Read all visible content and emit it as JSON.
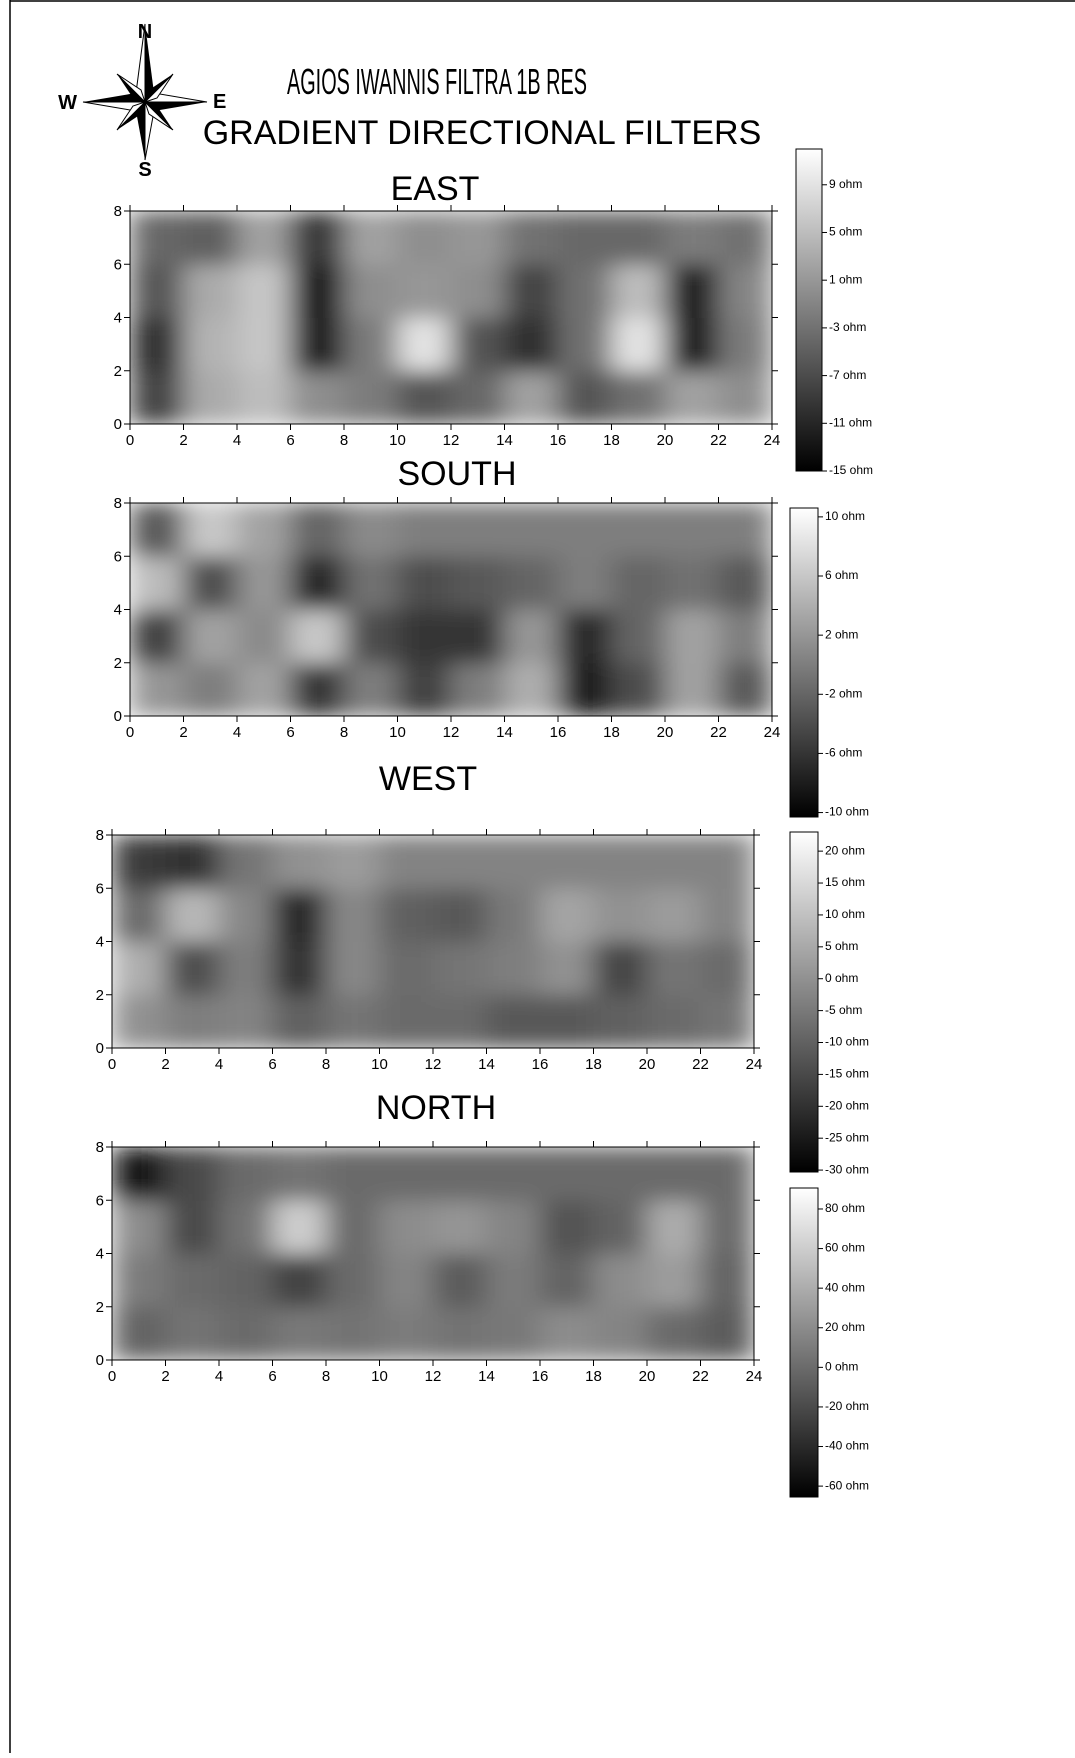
{
  "header": {
    "title": "AGIOS IWANNIS FILTRA 1B RES",
    "subtitle": "GRADIENT DIRECTIONAL FILTERS"
  },
  "compass": {
    "n": "N",
    "e": "E",
    "s": "S",
    "w": "W"
  },
  "chart_data": [
    {
      "type": "heatmap",
      "title": "EAST",
      "xlim": [
        0,
        24
      ],
      "ylim": [
        0,
        8
      ],
      "xticks": [
        0,
        2,
        4,
        6,
        8,
        10,
        12,
        14,
        16,
        18,
        20,
        22,
        24
      ],
      "yticks": [
        0,
        2,
        4,
        6,
        8
      ],
      "colors": [
        "#000000",
        "#ffffff"
      ],
      "zlim": [
        -15,
        12
      ],
      "zticks": [
        {
          "value": 9,
          "label": "9 ohm"
        },
        {
          "value": 5,
          "label": "5 ohm"
        },
        {
          "value": 1,
          "label": "1 ohm"
        },
        {
          "value": -3,
          "label": "-3 ohm"
        },
        {
          "value": -7,
          "label": "-7 ohm"
        },
        {
          "value": -11,
          "label": "-11 ohm"
        },
        {
          "value": -15,
          "label": "-15 ohm"
        }
      ],
      "z": [
        [
          -8,
          3,
          5,
          0,
          -2,
          -6,
          -4,
          2,
          -6,
          -3,
          2,
          0
        ],
        [
          -10,
          4,
          6,
          -12,
          -2,
          9,
          -6,
          -10,
          -3,
          9,
          -12,
          -2
        ],
        [
          -6,
          3,
          6,
          -13,
          0,
          1,
          0,
          -8,
          -3,
          5,
          -12,
          -1
        ],
        [
          -4,
          -5,
          2,
          -9,
          2,
          0,
          1,
          -3,
          -4,
          -4,
          -2,
          -3
        ]
      ]
    },
    {
      "type": "heatmap",
      "title": "SOUTH",
      "xlim": [
        0,
        24
      ],
      "ylim": [
        0,
        8
      ],
      "xticks": [
        0,
        2,
        4,
        6,
        8,
        10,
        12,
        14,
        16,
        18,
        20,
        22,
        24
      ],
      "yticks": [
        0,
        2,
        4,
        6,
        8
      ],
      "colors": [
        "#000000",
        "#ffffff"
      ],
      "zlim": [
        -10.3,
        10.6
      ],
      "zticks": [
        {
          "value": 10,
          "label": "10 ohm"
        },
        {
          "value": 6,
          "label": "6 ohm"
        },
        {
          "value": 2,
          "label": "2 ohm"
        },
        {
          "value": -2,
          "label": "-2 ohm"
        },
        {
          "value": -6,
          "label": "-6 ohm"
        },
        {
          "value": -10,
          "label": "-10 ohm"
        }
      ],
      "z": [
        [
          2,
          0,
          3,
          -6,
          0,
          -5,
          0,
          4,
          -8,
          -4,
          3,
          -3
        ],
        [
          -5,
          3,
          1,
          6,
          -4,
          -6,
          -6,
          2,
          -7,
          -2,
          3,
          0
        ],
        [
          5,
          -4,
          2,
          -7,
          -1,
          -4,
          -3,
          -2,
          0,
          -2,
          -1,
          -3
        ],
        [
          -3,
          6,
          3,
          -2,
          1,
          0,
          0,
          0,
          0,
          0,
          0,
          0
        ]
      ]
    },
    {
      "type": "heatmap",
      "title": "WEST",
      "xlim": [
        0,
        24
      ],
      "ylim": [
        0,
        8
      ],
      "xticks": [
        0,
        2,
        4,
        6,
        8,
        10,
        12,
        14,
        16,
        18,
        20,
        22,
        24
      ],
      "yticks": [
        0,
        2,
        4,
        6,
        8
      ],
      "colors": [
        "#000000",
        "#ffffff"
      ],
      "zlim": [
        -30.3,
        23
      ],
      "zticks": [
        {
          "value": 20,
          "label": "20 ohm"
        },
        {
          "value": 15,
          "label": "15 ohm"
        },
        {
          "value": 10,
          "label": "10 ohm"
        },
        {
          "value": 5,
          "label": "5 ohm"
        },
        {
          "value": 0,
          "label": "0 ohm"
        },
        {
          "value": -5,
          "label": "-5 ohm"
        },
        {
          "value": -10,
          "label": "-10 ohm"
        },
        {
          "value": -15,
          "label": "-15 ohm"
        },
        {
          "value": -20,
          "label": "-20 ohm"
        },
        {
          "value": -25,
          "label": "-25 ohm"
        },
        {
          "value": -30,
          "label": "-30 ohm"
        }
      ],
      "z": [
        [
          0,
          -4,
          -3,
          -10,
          -6,
          -8,
          -8,
          -12,
          -12,
          -10,
          -8,
          -6
        ],
        [
          6,
          -14,
          -4,
          -20,
          -2,
          -8,
          -6,
          -4,
          0,
          -16,
          -6,
          -8
        ],
        [
          -8,
          8,
          -2,
          -22,
          -2,
          -10,
          -12,
          -5,
          4,
          0,
          2,
          -3
        ],
        [
          -18,
          -20,
          -6,
          0,
          2,
          -3,
          -3,
          -3,
          -3,
          -3,
          -3,
          -3
        ]
      ]
    },
    {
      "type": "heatmap",
      "title": "NORTH",
      "xlim": [
        0,
        24
      ],
      "ylim": [
        0,
        8
      ],
      "xticks": [
        0,
        2,
        4,
        6,
        8,
        10,
        12,
        14,
        16,
        18,
        20,
        22,
        24
      ],
      "yticks": [
        0,
        2,
        4,
        6,
        8
      ],
      "colors": [
        "#000000",
        "#ffffff"
      ],
      "zlim": [
        -65.5,
        90.6
      ],
      "zticks": [
        {
          "value": 80,
          "label": "80 ohm"
        },
        {
          "value": 60,
          "label": "60 ohm"
        },
        {
          "value": 40,
          "label": "40 ohm"
        },
        {
          "value": 20,
          "label": "20 ohm"
        },
        {
          "value": 0,
          "label": "0 ohm"
        },
        {
          "value": -20,
          "label": "-20 ohm"
        },
        {
          "value": -40,
          "label": "-40 ohm"
        },
        {
          "value": -60,
          "label": "-60 ohm"
        }
      ],
      "z": [
        [
          -5,
          5,
          0,
          8,
          5,
          10,
          5,
          8,
          20,
          15,
          0,
          -10
        ],
        [
          10,
          0,
          -5,
          -25,
          0,
          15,
          -10,
          10,
          -5,
          20,
          30,
          -5
        ],
        [
          20,
          -20,
          5,
          60,
          0,
          20,
          25,
          15,
          -15,
          -5,
          40,
          0
        ],
        [
          -50,
          -20,
          0,
          5,
          0,
          0,
          0,
          0,
          0,
          0,
          0,
          0
        ]
      ]
    }
  ]
}
